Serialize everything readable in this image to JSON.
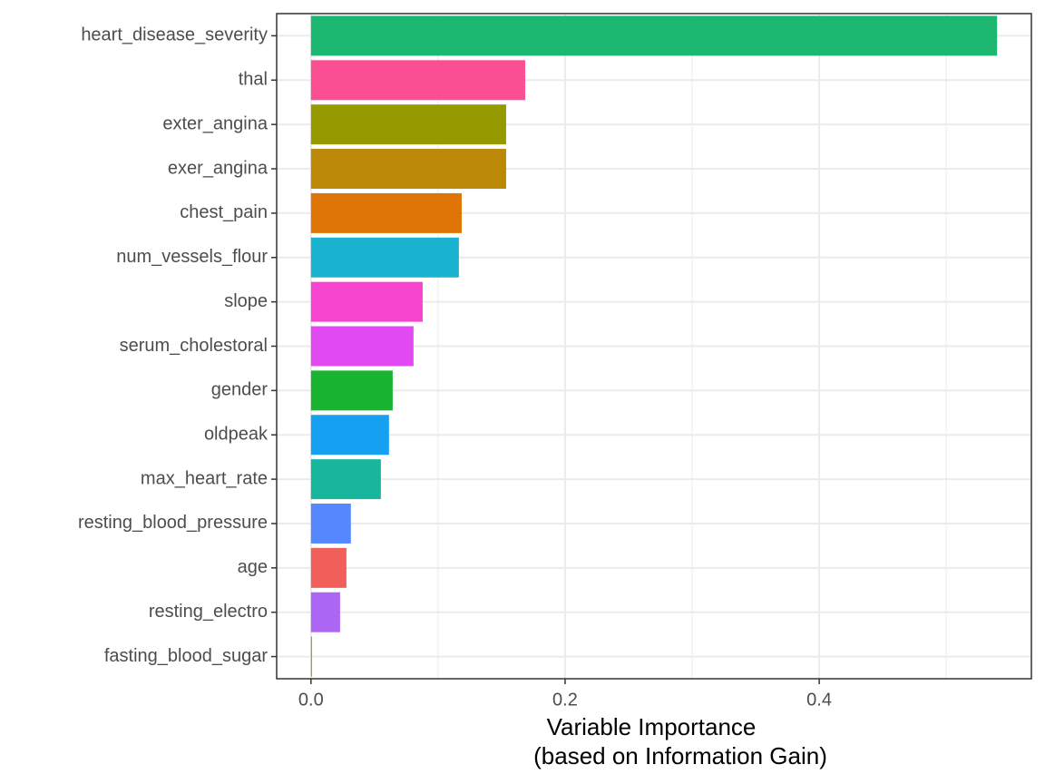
{
  "chart_data": {
    "type": "barh",
    "categories": [
      "heart_disease_severity",
      "thal",
      "exter_angina",
      "exer_angina",
      "chest_pain",
      "num_vessels_flour",
      "slope",
      "serum_cholestoral",
      "gender",
      "oldpeak",
      "max_heart_rate",
      "resting_blood_pressure",
      "age",
      "resting_electro",
      "fasting_blood_sugar"
    ],
    "values": [
      0.54,
      0.1686,
      0.1536,
      0.1536,
      0.1186,
      0.1164,
      0.0879,
      0.0807,
      0.0643,
      0.0614,
      0.055,
      0.0314,
      0.0279,
      0.0229,
      0.0007
    ],
    "colors": [
      "#1cb872",
      "#fb4f94",
      "#949a00",
      "#bb8807",
      "#de7506",
      "#19b2cf",
      "#f744cf",
      "#e04af0",
      "#1ab433",
      "#15a0f2",
      "#19b69e",
      "#5588ff",
      "#f05f5a",
      "#ab66f4",
      "#54a80a"
    ],
    "xlim": [
      -0.027,
      0.567
    ],
    "xticks": [
      {
        "value": 0,
        "label": "0.0"
      },
      0.2,
      0.4
    ],
    "xminor": [
      0.1,
      0.3,
      0.5
    ],
    "xlabel": [
      "Variable Importance",
      "(based on Information Gain)"
    ],
    "grid": true
  }
}
